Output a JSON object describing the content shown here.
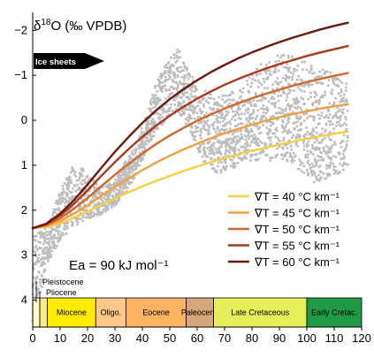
{
  "chart_data": {
    "type": "line",
    "ylabel": "δ¹⁸O (‰ VPDB)",
    "ylabel_parts": {
      "delta": "δ",
      "sup": "18",
      "rest": "O (‰ VPDB)"
    },
    "xlim": [
      0,
      120
    ],
    "ylim": [
      4.6,
      -2.4
    ],
    "y_inverted": true,
    "x_ticks": [
      0,
      10,
      20,
      30,
      40,
      50,
      60,
      70,
      80,
      90,
      100,
      110,
      120
    ],
    "x_tick_labels": [
      "0",
      "10",
      "20",
      "30",
      "40",
      "50",
      "60",
      "70",
      "80",
      "90",
      "100",
      "110",
      "120"
    ],
    "y_ticks": [
      -2,
      -1,
      0,
      1,
      2,
      3,
      4
    ],
    "y_tick_labels": [
      "−2",
      "−1",
      "0",
      "1",
      "2",
      "3",
      "4"
    ],
    "annotations": {
      "ice_sheets": "Ice sheets",
      "ea": "Ea = 90 kJ mol⁻¹",
      "pleistocene": "Pleistocene",
      "pliocene": "Pliocene"
    },
    "legend_position": "center-right",
    "series": [
      {
        "name": "∇T = 40 °C km⁻¹",
        "color": "#f7cf45",
        "x": [
          0,
          5,
          10,
          15,
          20,
          25,
          30,
          35,
          40,
          45,
          50,
          55,
          60,
          65,
          70,
          75,
          80,
          85,
          90,
          95,
          100,
          105,
          110,
          115
        ],
        "y": [
          2.4,
          2.37,
          2.29,
          2.17,
          2.03,
          1.88,
          1.74,
          1.6,
          1.47,
          1.35,
          1.24,
          1.13,
          1.03,
          0.93,
          0.84,
          0.76,
          0.68,
          0.61,
          0.54,
          0.47,
          0.41,
          0.35,
          0.3,
          0.25
        ]
      },
      {
        "name": "∇T = 45 °C km⁻¹",
        "color": "#f0a040",
        "x": [
          0,
          5,
          10,
          15,
          20,
          25,
          30,
          35,
          40,
          45,
          50,
          55,
          60,
          65,
          70,
          75,
          80,
          85,
          90,
          95,
          100,
          105,
          110,
          115
        ],
        "y": [
          2.4,
          2.35,
          2.24,
          2.08,
          1.89,
          1.68,
          1.48,
          1.29,
          1.11,
          0.94,
          0.79,
          0.65,
          0.52,
          0.4,
          0.29,
          0.19,
          0.1,
          0.01,
          -0.07,
          -0.14,
          -0.2,
          -0.26,
          -0.31,
          -0.36
        ]
      },
      {
        "name": "∇T = 50 °C km⁻¹",
        "color": "#d2692b",
        "x": [
          0,
          5,
          10,
          15,
          20,
          25,
          30,
          35,
          40,
          45,
          50,
          55,
          60,
          65,
          70,
          75,
          80,
          85,
          90,
          95,
          100,
          105,
          110,
          115
        ],
        "y": [
          2.4,
          2.33,
          2.18,
          1.97,
          1.73,
          1.47,
          1.21,
          0.97,
          0.74,
          0.53,
          0.34,
          0.17,
          0.01,
          -0.13,
          -0.26,
          -0.38,
          -0.49,
          -0.59,
          -0.68,
          -0.77,
          -0.85,
          -0.92,
          -0.99,
          -1.05
        ]
      },
      {
        "name": "∇T = 55 °C km⁻¹",
        "color": "#a93a1c",
        "x": [
          0,
          5,
          10,
          15,
          20,
          25,
          30,
          35,
          40,
          45,
          50,
          55,
          60,
          65,
          70,
          75,
          80,
          85,
          90,
          95,
          100,
          105,
          110,
          115
        ],
        "y": [
          2.4,
          2.31,
          2.12,
          1.86,
          1.56,
          1.24,
          0.93,
          0.64,
          0.37,
          0.12,
          -0.1,
          -0.3,
          -0.48,
          -0.64,
          -0.79,
          -0.92,
          -1.04,
          -1.15,
          -1.25,
          -1.34,
          -1.43,
          -1.51,
          -1.58,
          -1.65
        ]
      },
      {
        "name": "∇T = 60 °C km⁻¹",
        "color": "#6b1a10",
        "x": [
          0,
          5,
          10,
          15,
          20,
          25,
          30,
          35,
          40,
          45,
          50,
          55,
          60,
          65,
          70,
          75,
          80,
          85,
          90,
          95,
          100,
          105,
          110,
          115
        ],
        "y": [
          2.4,
          2.3,
          2.08,
          1.78,
          1.43,
          1.06,
          0.7,
          0.37,
          0.06,
          -0.22,
          -0.47,
          -0.69,
          -0.89,
          -1.07,
          -1.23,
          -1.38,
          -1.51,
          -1.63,
          -1.74,
          -1.84,
          -1.93,
          -2.02,
          -2.1,
          -2.17
        ]
      }
    ],
    "scatter_data_band": {
      "color": "#bdbdbd",
      "x": [
        0,
        3,
        6,
        10,
        14,
        17,
        20,
        25,
        30,
        34,
        38,
        42,
        46,
        50,
        53,
        57,
        62,
        67,
        72,
        77,
        82,
        87,
        92,
        97,
        102,
        107,
        112,
        115
      ],
      "y_low": [
        4.6,
        3.8,
        3.1,
        2.7,
        2.4,
        2.3,
        2.2,
        2.1,
        1.9,
        1.6,
        1.2,
        0.6,
        0.2,
        -0.1,
        -0.2,
        0.2,
        0.9,
        1.2,
        1.1,
        1.0,
        0.9,
        0.9,
        0.9,
        1.1,
        1.4,
        1.3,
        1.2,
        1.0
      ],
      "y_high": [
        2.6,
        2.4,
        2.2,
        1.6,
        1.0,
        0.9,
        1.2,
        1.5,
        1.3,
        0.9,
        0.5,
        -0.3,
        -1.0,
        -1.4,
        -1.6,
        -1.1,
        -0.7,
        -0.5,
        -0.6,
        -0.8,
        -1.2,
        -1.4,
        -1.5,
        -1.4,
        -1.2,
        -1.1,
        -1.0,
        -0.9
      ]
    },
    "epochs": [
      {
        "name": "",
        "start": 0,
        "end": 2.6,
        "color": "#fff8c8"
      },
      {
        "name": "",
        "start": 2.6,
        "end": 5.3,
        "color": "#f5ec8a"
      },
      {
        "name": "Miocene",
        "start": 5.3,
        "end": 23,
        "color": "#ffec00"
      },
      {
        "name": "Oligo.",
        "start": 23,
        "end": 34,
        "color": "#fdc889"
      },
      {
        "name": "Eocene",
        "start": 34,
        "end": 56,
        "color": "#fdb462"
      },
      {
        "name": "Paleocene",
        "start": 56,
        "end": 66,
        "color": "#d6a57a"
      },
      {
        "name": "Late Cretaceous",
        "start": 66,
        "end": 100,
        "color": "#e5ef5a"
      },
      {
        "name": "Early Cretac.",
        "start": 100,
        "end": 120,
        "color": "#1f9a45"
      }
    ]
  }
}
